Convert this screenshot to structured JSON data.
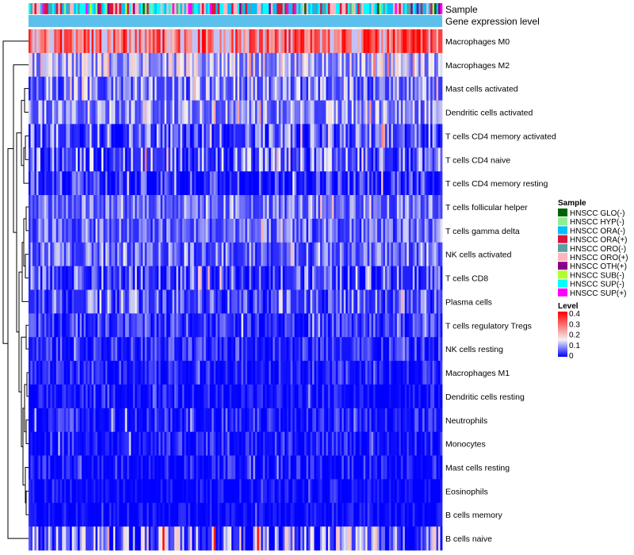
{
  "chart_data": {
    "type": "heatmap",
    "title": "",
    "annotation_tracks": [
      "Sample",
      "Gene expression level"
    ],
    "rows": [
      {
        "label": "Macrophages M0",
        "mean": 0.3,
        "spread": 0.1
      },
      {
        "label": "Macrophages M2",
        "mean": 0.13,
        "spread": 0.07
      },
      {
        "label": "Mast cells activated",
        "mean": 0.09,
        "spread": 0.08
      },
      {
        "label": "Dendritic cells activated",
        "mean": 0.1,
        "spread": 0.07
      },
      {
        "label": "T cells CD4 memory activated",
        "mean": 0.06,
        "spread": 0.08
      },
      {
        "label": "T cells CD4 naive",
        "mean": 0.07,
        "spread": 0.09
      },
      {
        "label": "T cells CD4 memory resting",
        "mean": 0.03,
        "spread": 0.07
      },
      {
        "label": "T cells follicular helper",
        "mean": 0.08,
        "spread": 0.06
      },
      {
        "label": "T cells gamma delta",
        "mean": 0.07,
        "spread": 0.06
      },
      {
        "label": "NK cells activated",
        "mean": 0.07,
        "spread": 0.06
      },
      {
        "label": "T cells CD8",
        "mean": 0.05,
        "spread": 0.08
      },
      {
        "label": "Plasma cells",
        "mean": 0.06,
        "spread": 0.07
      },
      {
        "label": "T cells regulatory  Tregs",
        "mean": 0.04,
        "spread": 0.05
      },
      {
        "label": "NK cells resting",
        "mean": 0.03,
        "spread": 0.05
      },
      {
        "label": "Macrophages M1",
        "mean": 0.02,
        "spread": 0.05
      },
      {
        "label": "Dendritic cells resting",
        "mean": 0.01,
        "spread": 0.04
      },
      {
        "label": "Neutrophils",
        "mean": 0.02,
        "spread": 0.05
      },
      {
        "label": "Monocytes",
        "mean": 0.02,
        "spread": 0.05
      },
      {
        "label": "Mast cells resting",
        "mean": 0.01,
        "spread": 0.05
      },
      {
        "label": "Eosinophils",
        "mean": 0.005,
        "spread": 0.03
      },
      {
        "label": "B cells memory",
        "mean": 0.005,
        "spread": 0.03
      },
      {
        "label": "B cells naive",
        "mean": 0.08,
        "spread": 0.13
      }
    ],
    "n_samples": 210,
    "color_scale": {
      "min": 0,
      "max": 0.4,
      "stops": [
        {
          "value": 0,
          "color": "#0000ff"
        },
        {
          "value": 0.15,
          "color": "#f2f2f2"
        },
        {
          "value": 0.4,
          "color": "#ff0000"
        }
      ],
      "ticks": [
        "0.4",
        "0.3",
        "0.2",
        "0.1",
        "0"
      ]
    },
    "gene_expression_level_color": "#5bc0eb",
    "legend": {
      "sample_title": "Sample",
      "level_title": "Level",
      "groups": [
        {
          "label": "HNSCC GLO(-)",
          "color": "#006400"
        },
        {
          "label": "HNSCC HYP(-)",
          "color": "#90ee90"
        },
        {
          "label": "HNSCC ORA(-)",
          "color": "#00bfff"
        },
        {
          "label": "HNSCC ORA(+)",
          "color": "#dc143c"
        },
        {
          "label": "HNSCC ORO(-)",
          "color": "#5f9ea0"
        },
        {
          "label": "HNSCC ORO(+)",
          "color": "#ffb6c1"
        },
        {
          "label": "HNSCC OTH(+)",
          "color": "#8b008b"
        },
        {
          "label": "HNSCC SUB(-)",
          "color": "#adff2f"
        },
        {
          "label": "HNSCC SUP(-)",
          "color": "#00ffff"
        },
        {
          "label": "HNSCC SUP(+)",
          "color": "#ff00ff"
        }
      ]
    }
  }
}
